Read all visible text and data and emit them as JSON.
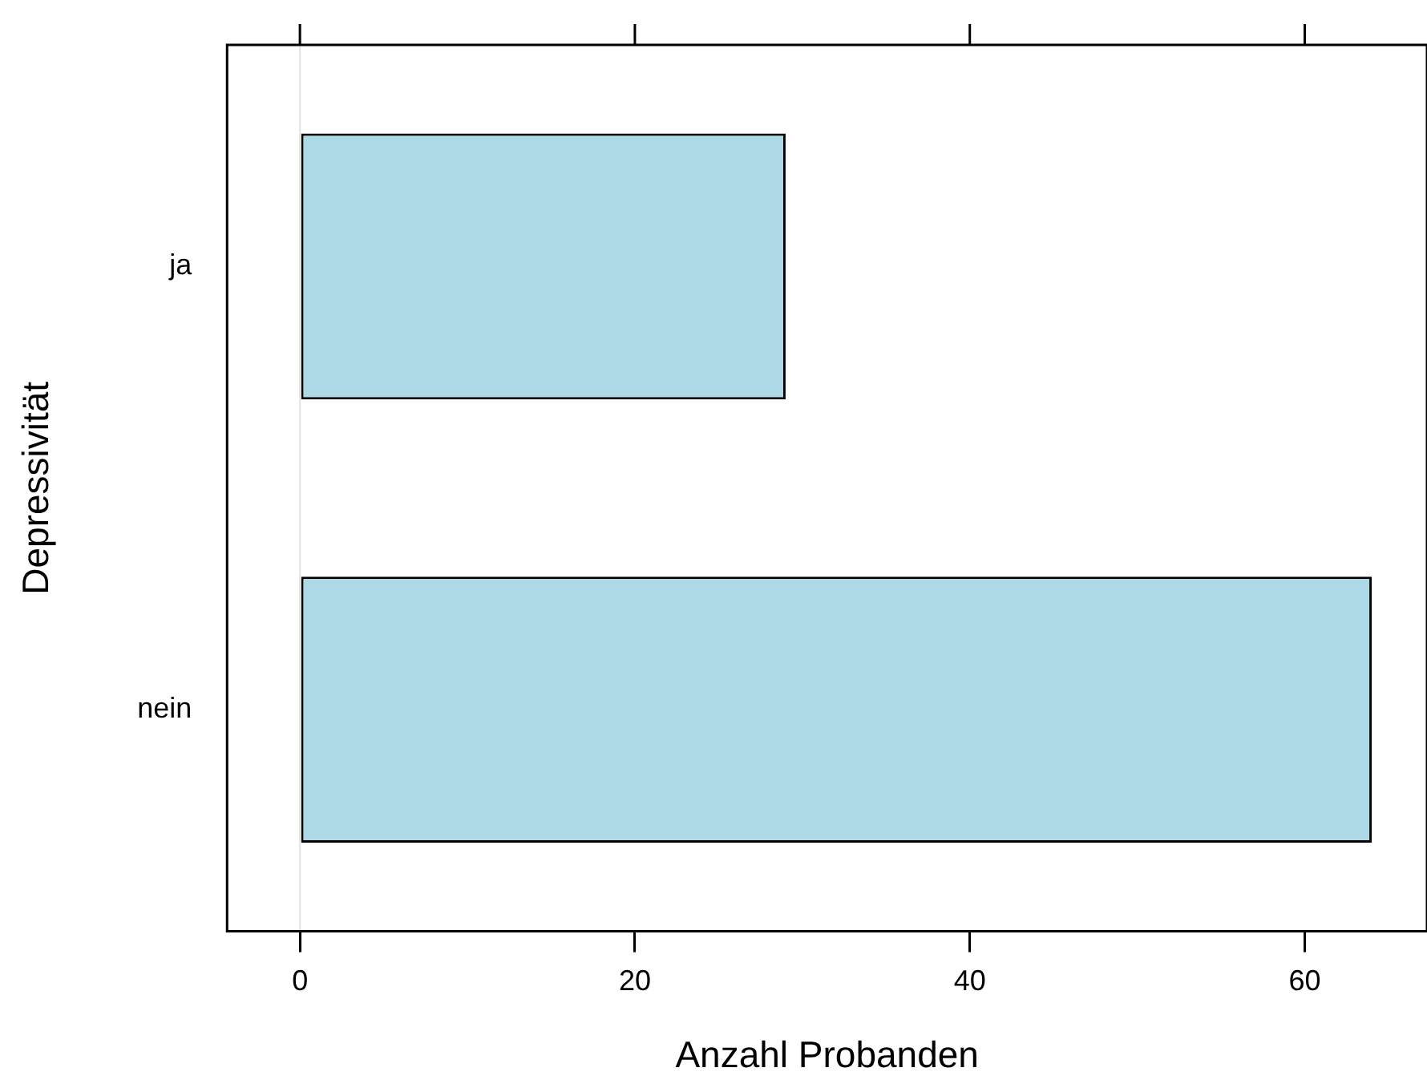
{
  "chart_data": {
    "type": "bar",
    "orientation": "horizontal",
    "xlabel": "Anzahl Probanden",
    "ylabel": "Depressivität",
    "categories": [
      "ja",
      "nein"
    ],
    "values": [
      29,
      64
    ],
    "color": "#add8e6",
    "xlim": [
      -4.35,
      67.3
    ],
    "xticks": [
      0,
      20,
      40,
      60
    ],
    "ref_lines": [
      {
        "axis": "x",
        "value": 0,
        "color": "#e6e6e6"
      }
    ],
    "legend": false
  }
}
